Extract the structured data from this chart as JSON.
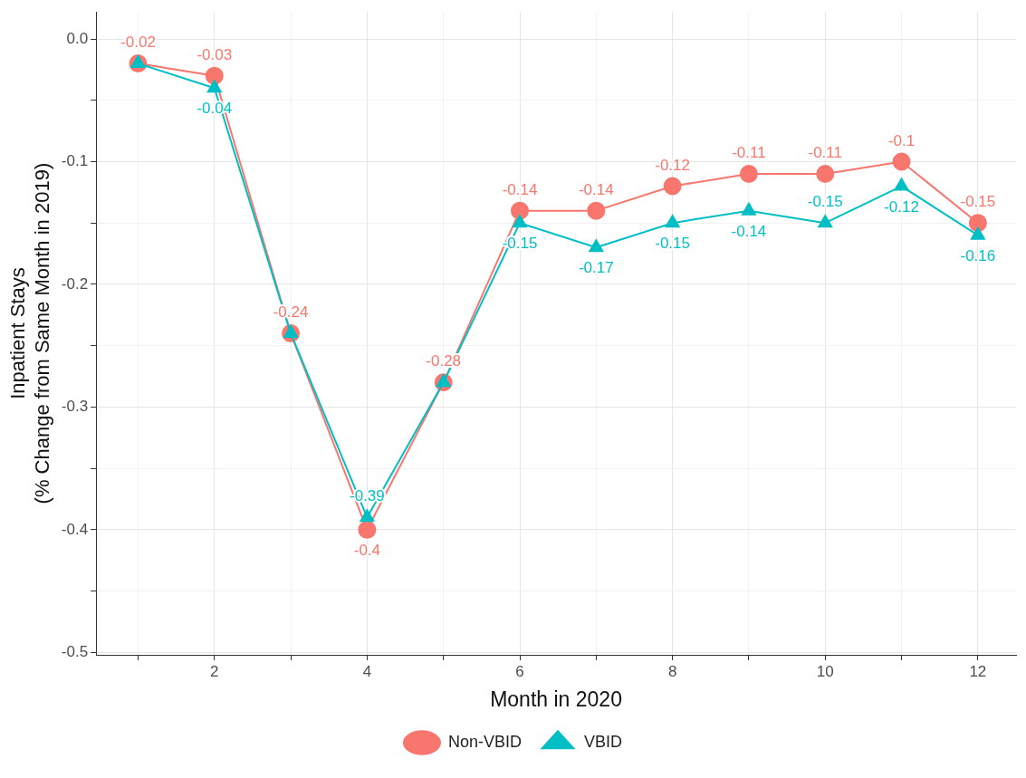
{
  "chart_data": {
    "type": "line",
    "xlabel": "Month in 2020",
    "ylabel": "Inpatient Stays\n(% Change from Same Month in 2019)",
    "x": [
      1,
      2,
      3,
      4,
      5,
      6,
      7,
      8,
      9,
      10,
      11,
      12
    ],
    "series": [
      {
        "name": "Non-VBID",
        "color": "#f8766d",
        "marker": "circle",
        "values": [
          -0.02,
          -0.03,
          -0.24,
          -0.4,
          -0.28,
          -0.14,
          -0.14,
          -0.12,
          -0.11,
          -0.11,
          -0.1,
          -0.15
        ],
        "value_labels": [
          "-0.02",
          "-0.03",
          "-0.24",
          "-0.4",
          "-0.28",
          "-0.14",
          "-0.14",
          "-0.12",
          "-0.11",
          "-0.11",
          "-0.1",
          "-0.15"
        ]
      },
      {
        "name": "VBID",
        "color": "#00bfc4",
        "marker": "triangle",
        "values": [
          -0.02,
          -0.04,
          -0.24,
          -0.39,
          -0.28,
          -0.15,
          -0.17,
          -0.15,
          -0.14,
          -0.15,
          -0.12,
          -0.16
        ],
        "value_labels": [
          null,
          "-0.04",
          null,
          "-0.39",
          null,
          "-0.15",
          "-0.17",
          "-0.15",
          "-0.14",
          "-0.15",
          "-0.12",
          "-0.16"
        ]
      }
    ],
    "xlim": [
      0.45,
      12.5
    ],
    "xticks": [
      {
        "value": 1,
        "label": null
      },
      2,
      {
        "value": 3,
        "label": null
      },
      4,
      {
        "value": 5,
        "label": null
      },
      6,
      {
        "value": 7,
        "label": null
      },
      8,
      {
        "value": 9,
        "label": null
      },
      10,
      {
        "value": 11,
        "label": null
      },
      12
    ],
    "ylim": [
      -0.502,
      0.022
    ],
    "yticks": [
      {
        "value": -0.5,
        "label": "-0.5"
      },
      {
        "value": -0.45,
        "label": null
      },
      {
        "value": -0.4,
        "label": "-0.4"
      },
      {
        "value": -0.35,
        "label": null
      },
      {
        "value": -0.3,
        "label": "-0.3"
      },
      {
        "value": -0.25,
        "label": null
      },
      {
        "value": -0.2,
        "label": "-0.2"
      },
      {
        "value": -0.15,
        "label": null
      },
      {
        "value": -0.1,
        "label": "-0.1"
      },
      {
        "value": -0.05,
        "label": null
      },
      {
        "value": 0,
        "label": "0.0"
      }
    ],
    "grid": true,
    "legend": "bottom",
    "line_style": "solid"
  }
}
